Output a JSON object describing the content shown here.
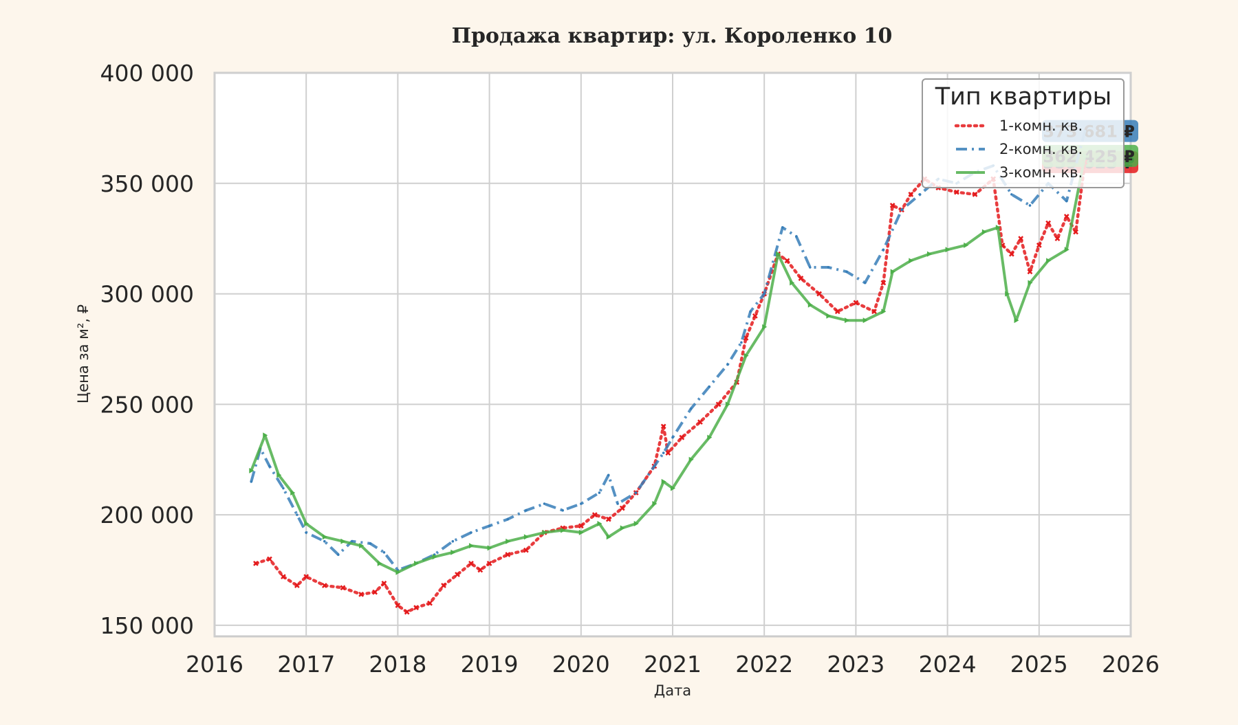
{
  "chart_data": {
    "type": "line",
    "title": "Продажа квартир: ул. Короленко 10",
    "xlabel": "Дата",
    "ylabel": "Цена за м², ₽",
    "xlim": [
      2016,
      2026
    ],
    "ylim": [
      145000,
      400000
    ],
    "x_ticks": [
      "2016",
      "2017",
      "2018",
      "2019",
      "2020",
      "2021",
      "2022",
      "2023",
      "2024",
      "2025",
      "2026"
    ],
    "y_ticks": [
      "150 000",
      "200 000",
      "250 000",
      "300 000",
      "350 000",
      "400 000"
    ],
    "grid": true,
    "legend": {
      "title": "Тип квартиры",
      "position": "top-right"
    },
    "series": [
      {
        "name": "1-комн. кв.",
        "color": "#e41a1c",
        "style": "dotted-x",
        "end_label": "359 625 ₽",
        "x": [
          2016.45,
          2016.6,
          2016.75,
          2016.9,
          2017.0,
          2017.2,
          2017.4,
          2017.6,
          2017.75,
          2017.85,
          2018.0,
          2018.1,
          2018.2,
          2018.35,
          2018.5,
          2018.65,
          2018.8,
          2018.9,
          2019.0,
          2019.2,
          2019.4,
          2019.6,
          2019.8,
          2020.0,
          2020.15,
          2020.3,
          2020.45,
          2020.6,
          2020.8,
          2020.9,
          2020.95,
          2021.1,
          2021.3,
          2021.5,
          2021.7,
          2021.8,
          2021.9,
          2022.0,
          2022.15,
          2022.25,
          2022.4,
          2022.6,
          2022.8,
          2023.0,
          2023.2,
          2023.3,
          2023.4,
          2023.5,
          2023.6,
          2023.75,
          2023.9,
          2024.1,
          2024.3,
          2024.5,
          2024.6,
          2024.7,
          2024.8,
          2024.9,
          2025.0,
          2025.1,
          2025.2,
          2025.3,
          2025.4,
          2025.5
        ],
        "y": [
          178000,
          180000,
          172000,
          168000,
          172000,
          168000,
          167000,
          164000,
          165000,
          169000,
          159000,
          156000,
          158000,
          160000,
          168000,
          173000,
          178000,
          175000,
          178000,
          182000,
          184000,
          192000,
          194000,
          195000,
          200000,
          198000,
          203000,
          210000,
          222000,
          240000,
          228000,
          235000,
          242000,
          250000,
          260000,
          280000,
          290000,
          300000,
          318000,
          315000,
          307000,
          300000,
          292000,
          296000,
          292000,
          305000,
          340000,
          338000,
          345000,
          352000,
          348000,
          346000,
          345000,
          352000,
          322000,
          318000,
          325000,
          310000,
          322000,
          332000,
          325000,
          335000,
          328000,
          359625
        ]
      },
      {
        "name": "2-комн. кв.",
        "color": "#377eb8",
        "style": "dash-dot",
        "end_label": "373 681 ₽",
        "x": [
          2016.4,
          2016.5,
          2016.6,
          2016.75,
          2016.9,
          2017.0,
          2017.2,
          2017.35,
          2017.5,
          2017.7,
          2017.85,
          2018.0,
          2018.2,
          2018.4,
          2018.6,
          2018.8,
          2019.0,
          2019.2,
          2019.4,
          2019.6,
          2019.8,
          2020.0,
          2020.2,
          2020.3,
          2020.4,
          2020.6,
          2020.8,
          2020.9,
          2021.0,
          2021.2,
          2021.4,
          2021.6,
          2021.75,
          2021.85,
          2022.0,
          2022.2,
          2022.35,
          2022.5,
          2022.7,
          2022.9,
          2023.1,
          2023.3,
          2023.5,
          2023.7,
          2023.9,
          2024.1,
          2024.3,
          2024.5,
          2024.7,
          2024.9,
          2025.1,
          2025.3,
          2025.5
        ],
        "y": [
          215000,
          230000,
          222000,
          212000,
          200000,
          192000,
          188000,
          182000,
          188000,
          187000,
          183000,
          175000,
          178000,
          182000,
          188000,
          192000,
          195000,
          198000,
          202000,
          205000,
          202000,
          205000,
          210000,
          218000,
          205000,
          210000,
          222000,
          228000,
          235000,
          248000,
          258000,
          268000,
          278000,
          292000,
          300000,
          330000,
          326000,
          312000,
          312000,
          310000,
          305000,
          320000,
          338000,
          345000,
          352000,
          350000,
          355000,
          358000,
          345000,
          340000,
          350000,
          342000,
          373681
        ]
      },
      {
        "name": "3-комн. кв.",
        "color": "#4daf4a",
        "style": "solid-triangle",
        "end_label": "362 425 ₽",
        "x": [
          2016.4,
          2016.55,
          2016.7,
          2016.85,
          2017.0,
          2017.2,
          2017.4,
          2017.6,
          2017.8,
          2018.0,
          2018.2,
          2018.4,
          2018.6,
          2018.8,
          2019.0,
          2019.2,
          2019.4,
          2019.6,
          2019.8,
          2020.0,
          2020.2,
          2020.3,
          2020.45,
          2020.6,
          2020.8,
          2020.9,
          2021.0,
          2021.2,
          2021.4,
          2021.6,
          2021.8,
          2022.0,
          2022.15,
          2022.3,
          2022.5,
          2022.7,
          2022.9,
          2023.1,
          2023.3,
          2023.4,
          2023.6,
          2023.8,
          2024.0,
          2024.2,
          2024.4,
          2024.55,
          2024.65,
          2024.75,
          2024.9,
          2025.1,
          2025.3,
          2025.5
        ],
        "y": [
          220000,
          236000,
          218000,
          210000,
          196000,
          190000,
          188000,
          186000,
          178000,
          174000,
          178000,
          181000,
          183000,
          186000,
          185000,
          188000,
          190000,
          192000,
          193000,
          192000,
          196000,
          190000,
          194000,
          196000,
          205000,
          215000,
          212000,
          225000,
          235000,
          250000,
          272000,
          285000,
          318000,
          305000,
          295000,
          290000,
          288000,
          288000,
          292000,
          310000,
          315000,
          318000,
          320000,
          322000,
          328000,
          330000,
          300000,
          288000,
          305000,
          315000,
          320000,
          362425
        ]
      }
    ]
  }
}
